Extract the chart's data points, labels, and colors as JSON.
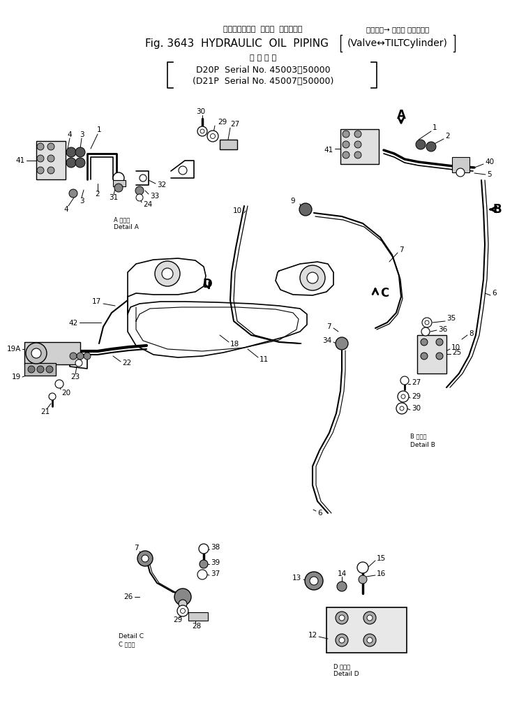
{
  "title_jp": "ハイドロリック  オイル  パイピング （バルブ→ チルト シリンダ）",
  "title_en": "Fig. 3643  HYDRAULIC  OIL  PIPING",
  "title_paren": "(Valve↔TILTCylinder)",
  "subtitle_jp": "適 用 号 機",
  "subtitle1": "D20P  Serial No. 45003～50000",
  "subtitle2": "(D21P  Serial No. 45007～50000)",
  "bg_color": "#ffffff"
}
